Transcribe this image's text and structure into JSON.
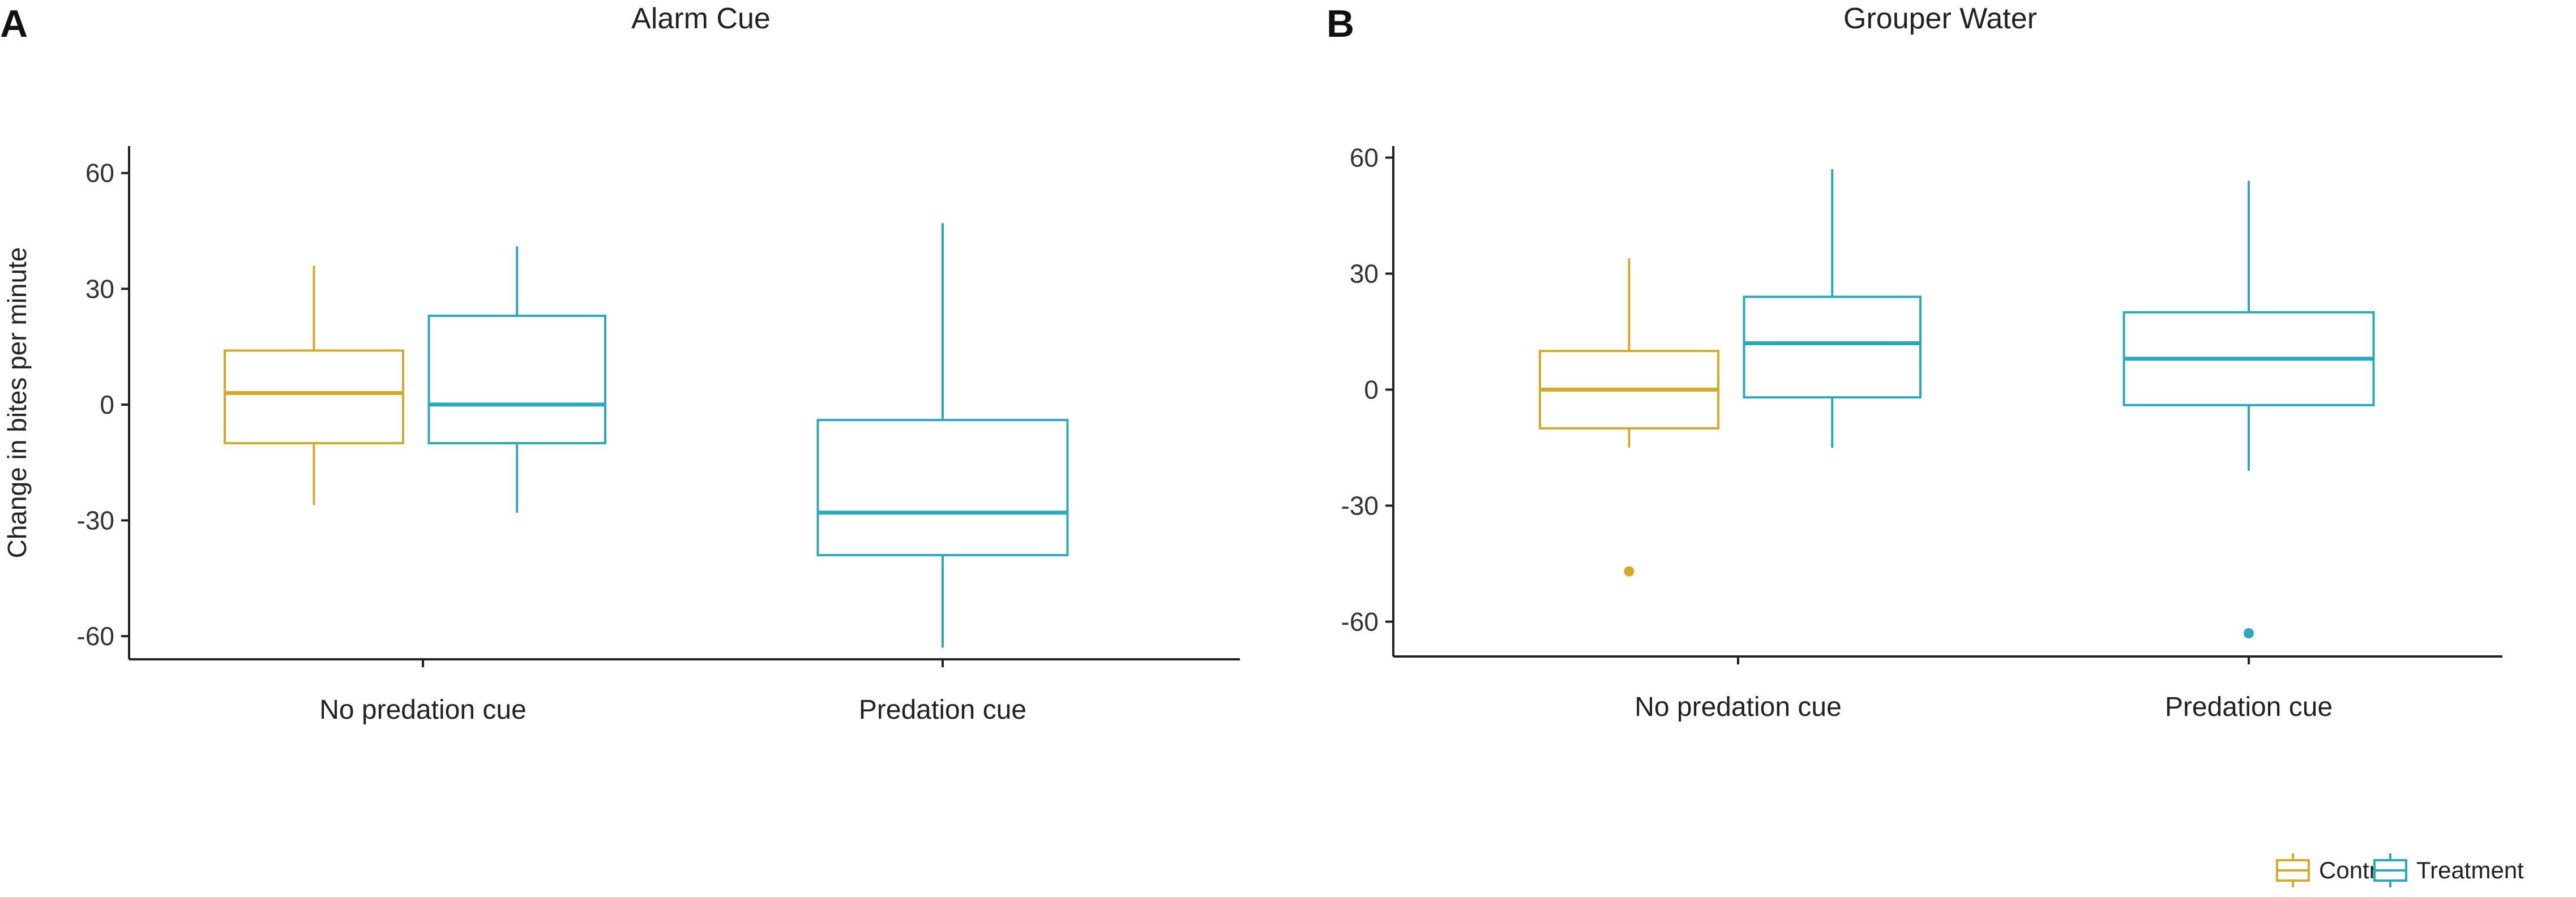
{
  "figure": {
    "legend": {
      "items": [
        {
          "label": "Control",
          "color": "#D4AA2A"
        },
        {
          "label": "Treatment",
          "color": "#2AA9BE"
        }
      ]
    }
  },
  "chart_data": [
    {
      "type": "box",
      "panel_label": "A",
      "title": "Alarm Cue",
      "xlabel": "",
      "ylabel": "Change in bites per minute",
      "ylim": [
        -66,
        67
      ],
      "yticks": [
        60,
        30,
        0,
        -30,
        -60
      ],
      "categories": [
        "No predation cue",
        "Predation cue"
      ],
      "boxes": [
        {
          "category": "No predation cue",
          "series": "Control",
          "slot": "left",
          "whisker_low": -26,
          "q1": -10,
          "median": 3,
          "q3": 14,
          "whisker_high": 36,
          "outliers": []
        },
        {
          "category": "No predation cue",
          "series": "Treatment",
          "slot": "right",
          "whisker_low": -28,
          "q1": -10,
          "median": 0,
          "q3": 23,
          "whisker_high": 41,
          "outliers": []
        },
        {
          "category": "Predation cue",
          "series": "Treatment",
          "slot": "full",
          "whisker_low": -63,
          "q1": -39,
          "median": -28,
          "q3": -4,
          "whisker_high": 47,
          "outliers": []
        }
      ]
    },
    {
      "type": "box",
      "panel_label": "B",
      "title": "Grouper Water",
      "xlabel": "",
      "ylabel": "",
      "ylim": [
        -69,
        63
      ],
      "yticks": [
        60,
        30,
        0,
        -30,
        -60
      ],
      "categories": [
        "No predation cue",
        "Predation cue"
      ],
      "boxes": [
        {
          "category": "No predation cue",
          "series": "Control",
          "slot": "left",
          "whisker_low": -15,
          "q1": -10,
          "median": 0,
          "q3": 10,
          "whisker_high": 34,
          "outliers": [
            -47
          ]
        },
        {
          "category": "No predation cue",
          "series": "Treatment",
          "slot": "right",
          "whisker_low": -15,
          "q1": -2,
          "median": 12,
          "q3": 24,
          "whisker_high": 57,
          "outliers": []
        },
        {
          "category": "Predation cue",
          "series": "Treatment",
          "slot": "full",
          "whisker_low": -21,
          "q1": -4,
          "median": 8,
          "q3": 20,
          "whisker_high": 54,
          "outliers": [
            -63
          ]
        }
      ]
    }
  ]
}
